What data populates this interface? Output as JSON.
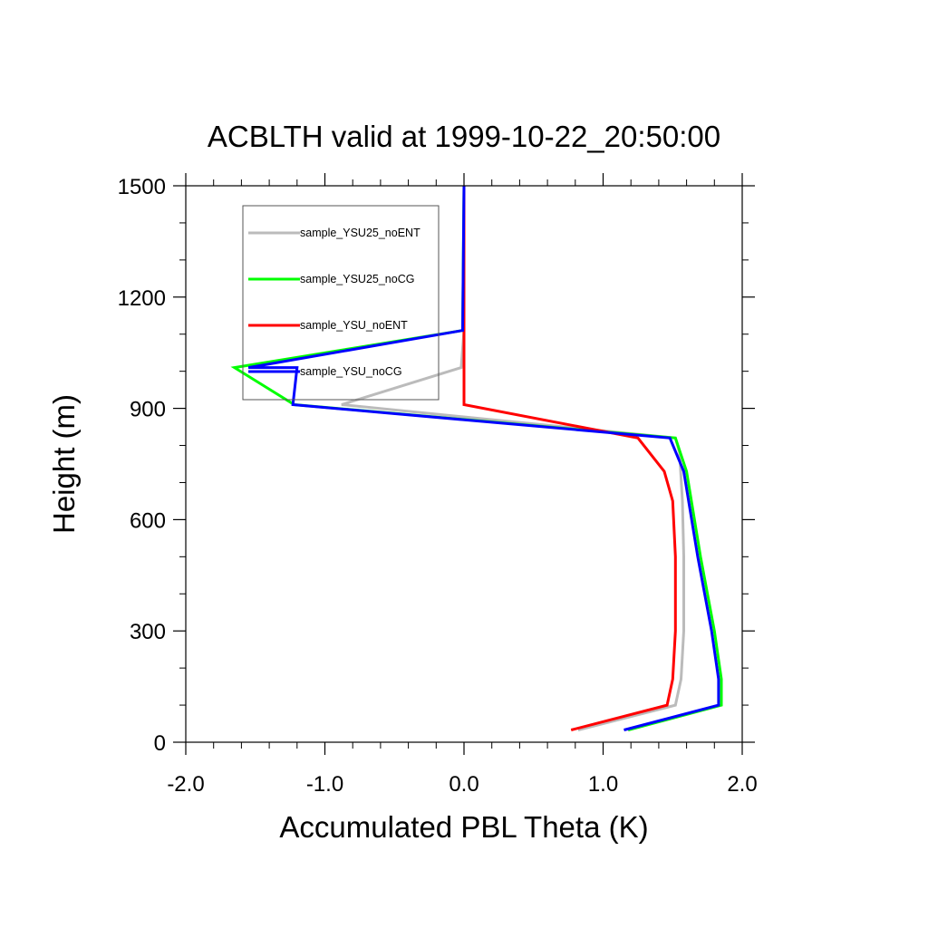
{
  "chart_data": {
    "type": "line",
    "title": "ACBLTH valid at 1999-10-22_20:50:00",
    "xlabel": "Accumulated PBL Theta (K)",
    "ylabel": "Height (m)",
    "xlim": [
      -2.0,
      2.0
    ],
    "ylim": [
      0,
      1500
    ],
    "x_ticks": [
      -2.0,
      -1.0,
      0.0,
      1.0,
      2.0
    ],
    "x_tick_labels": [
      "-2.0",
      "-1.0",
      "0.0",
      "1.0",
      "2.0"
    ],
    "y_ticks": [
      0,
      300,
      600,
      900,
      1200,
      1500
    ],
    "y_tick_labels": [
      "0",
      "300",
      "600",
      "900",
      "1200",
      "1500"
    ],
    "grid": false,
    "legend_position": "top-left",
    "series": [
      {
        "name": "sample_YSU25_noENT",
        "color": "#bbbbbb",
        "points": [
          [
            0.82,
            33
          ],
          [
            1.52,
            100
          ],
          [
            1.56,
            170
          ],
          [
            1.58,
            300
          ],
          [
            1.58,
            500
          ],
          [
            1.57,
            650
          ],
          [
            1.55,
            780
          ],
          [
            1.52,
            820
          ],
          [
            -0.88,
            910
          ],
          [
            -0.02,
            1010
          ],
          [
            0.0,
            1110
          ],
          [
            0.0,
            1500
          ]
        ]
      },
      {
        "name": "sample_YSU25_noCG",
        "color": "#00ff00",
        "points": [
          [
            1.18,
            33
          ],
          [
            1.85,
            100
          ],
          [
            1.85,
            170
          ],
          [
            1.8,
            300
          ],
          [
            1.7,
            500
          ],
          [
            1.6,
            730
          ],
          [
            1.52,
            820
          ],
          [
            -1.22,
            910
          ],
          [
            -1.65,
            1010
          ],
          [
            -0.01,
            1110
          ],
          [
            0.0,
            1500
          ]
        ]
      },
      {
        "name": "sample_YSU_noENT",
        "color": "#ff0000",
        "points": [
          [
            0.77,
            33
          ],
          [
            1.46,
            100
          ],
          [
            1.5,
            170
          ],
          [
            1.52,
            300
          ],
          [
            1.52,
            500
          ],
          [
            1.5,
            650
          ],
          [
            1.44,
            730
          ],
          [
            1.25,
            820
          ],
          [
            0.0,
            910
          ],
          [
            0.0,
            1500
          ]
        ]
      },
      {
        "name": "sample_YSU_noCG",
        "color": "#0000ff",
        "points": [
          [
            1.15,
            33
          ],
          [
            1.83,
            100
          ],
          [
            1.83,
            170
          ],
          [
            1.78,
            300
          ],
          [
            1.68,
            500
          ],
          [
            1.58,
            730
          ],
          [
            1.48,
            820
          ],
          [
            -1.23,
            910
          ],
          [
            -1.2,
            1010
          ],
          [
            -1.55,
            1010
          ],
          [
            -0.01,
            1110
          ],
          [
            0.0,
            1500
          ]
        ]
      }
    ]
  }
}
